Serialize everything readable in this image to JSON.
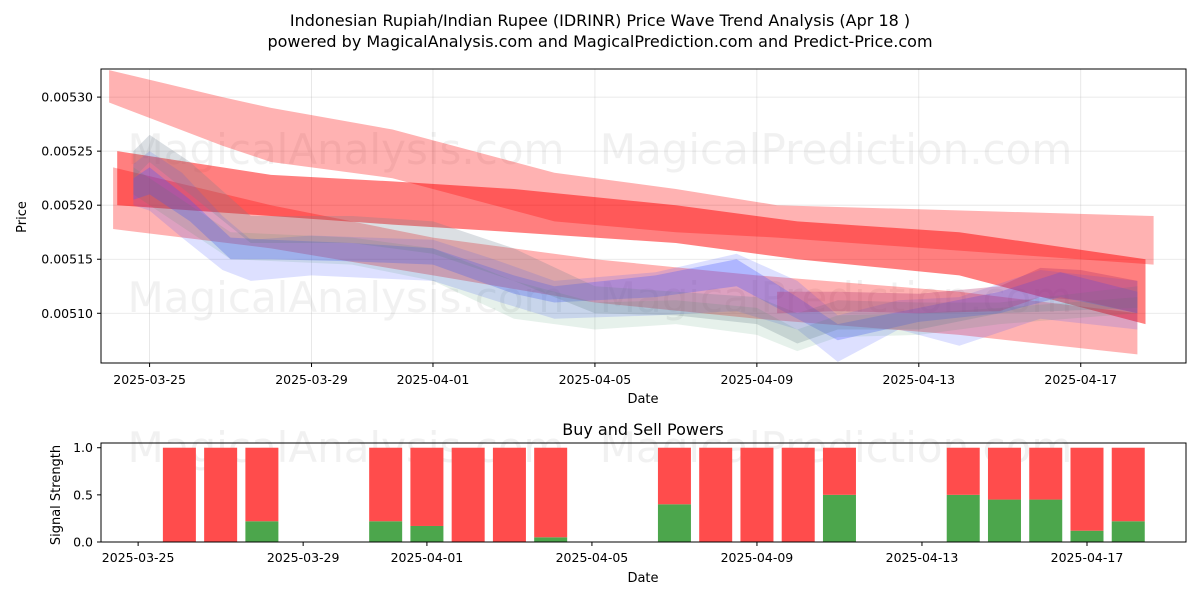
{
  "chart_data": [
    {
      "type": "area",
      "title_line1": "Indonesian Rupiah/Indian Rupee (IDRINR) Price Wave Trend Analysis (Apr 18 )",
      "title_line2": "powered by MagicalAnalysis.com and MagicalPrediction.com and Predict-Price.com",
      "xlabel": "Date",
      "ylabel": "Price",
      "x_ticks": [
        "2025-03-25",
        "2025-03-29",
        "2025-04-01",
        "2025-04-05",
        "2025-04-09",
        "2025-04-13",
        "2025-04-17"
      ],
      "x_tick_days": [
        0,
        4,
        7,
        11,
        15,
        19,
        23
      ],
      "xlim_days": [
        -1.2,
        25.6
      ],
      "y_ticks": [
        "0.00510",
        "0.00515",
        "0.00520",
        "0.00525",
        "0.00530"
      ],
      "y_tick_values": [
        0.0051,
        0.00515,
        0.0052,
        0.00525,
        0.0053
      ],
      "ylim": [
        0.005054,
        0.005326
      ],
      "grid": true,
      "watermarks": [
        "MagicalAnalysis.com",
        "MagicalPrediction.com",
        "MagicalAnalysis.com",
        "MagicalPrediction.com"
      ],
      "series": [
        {
          "name": "red-band-upper",
          "color": "#ff0000",
          "opacity": 0.3,
          "x": [
            -1,
            1.8,
            3,
            6,
            10,
            13,
            15.5,
            24.8
          ],
          "upper": [
            0.005325,
            0.0053,
            0.00529,
            0.00527,
            0.00523,
            0.005215,
            0.0052,
            0.00519
          ],
          "lower": [
            0.005295,
            0.005255,
            0.00524,
            0.005225,
            0.005185,
            0.005175,
            0.00517,
            0.005145
          ]
        },
        {
          "name": "red-band-middle",
          "color": "#ff0000",
          "opacity": 0.5,
          "x": [
            -0.8,
            3,
            6,
            9,
            13,
            16,
            20,
            24.6
          ],
          "upper": [
            0.00525,
            0.005228,
            0.005222,
            0.005215,
            0.0052,
            0.005185,
            0.005175,
            0.00515
          ],
          "lower": [
            0.0052,
            0.00519,
            0.005182,
            0.005175,
            0.005165,
            0.00515,
            0.005135,
            0.00509
          ]
        },
        {
          "name": "red-band-lower",
          "color": "#ff0000",
          "opacity": 0.3,
          "x": [
            -0.9,
            3,
            7,
            11,
            15,
            20,
            24.4
          ],
          "upper": [
            0.005235,
            0.0052,
            0.00517,
            0.00515,
            0.005135,
            0.00512,
            0.0051
          ],
          "lower": [
            0.005178,
            0.00516,
            0.005135,
            0.00511,
            0.005095,
            0.00508,
            0.005062
          ]
        },
        {
          "name": "blue-band-outer",
          "color": "#4455ff",
          "opacity": 0.18,
          "x": [
            -0.4,
            0,
            0.8,
            1.8,
            2.5,
            4,
            7,
            8.5,
            10,
            12.5,
            14.5,
            16,
            17,
            18.5,
            20,
            22,
            24.4
          ],
          "upper": [
            0.005238,
            0.00525,
            0.00523,
            0.00519,
            0.005168,
            0.005172,
            0.005168,
            0.00515,
            0.00513,
            0.005138,
            0.005155,
            0.00513,
            0.005098,
            0.005112,
            0.005115,
            0.00514,
            0.00513
          ],
          "lower": [
            0.0052,
            0.005195,
            0.00517,
            0.00514,
            0.00513,
            0.005135,
            0.00513,
            0.005112,
            0.005095,
            0.005098,
            0.005102,
            0.005085,
            0.005055,
            0.005085,
            0.00507,
            0.005095,
            0.005085
          ]
        },
        {
          "name": "blue-band-inner",
          "color": "#4455ff",
          "opacity": 0.3,
          "x": [
            -0.4,
            0,
            1,
            2,
            3,
            5,
            7,
            9,
            10,
            12.5,
            14.5,
            16,
            17,
            19,
            21,
            22.5,
            24.4
          ],
          "upper": [
            0.005225,
            0.005235,
            0.005205,
            0.00517,
            0.005168,
            0.005165,
            0.00516,
            0.005135,
            0.005125,
            0.005135,
            0.00515,
            0.005115,
            0.00509,
            0.005105,
            0.00512,
            0.005138,
            0.00512
          ],
          "lower": [
            0.005205,
            0.00521,
            0.005185,
            0.00515,
            0.00515,
            0.005148,
            0.005145,
            0.005118,
            0.00511,
            0.005115,
            0.005125,
            0.005095,
            0.005075,
            0.005092,
            0.0051,
            0.005115,
            0.0051
          ]
        },
        {
          "name": "gray-band",
          "color": "#708090",
          "opacity": 0.25,
          "x": [
            -0.4,
            0,
            1,
            2.5,
            5,
            7,
            9,
            11,
            13,
            15,
            16,
            17,
            19,
            21,
            24.4
          ],
          "upper": [
            0.00525,
            0.005265,
            0.00524,
            0.00519,
            0.00519,
            0.005185,
            0.00516,
            0.005125,
            0.00512,
            0.005115,
            0.0051,
            0.005112,
            0.00511,
            0.00511,
            0.005125
          ],
          "lower": [
            0.005225,
            0.00524,
            0.00521,
            0.005165,
            0.005165,
            0.005155,
            0.00513,
            0.0051,
            0.005098,
            0.00509,
            0.005072,
            0.005085,
            0.005085,
            0.0051,
            0.005105
          ]
        },
        {
          "name": "green-band",
          "color": "#2e8b57",
          "opacity": 0.12,
          "x": [
            -0.4,
            2,
            5,
            7,
            9,
            11,
            13,
            15,
            16,
            17,
            19,
            21,
            24.4
          ],
          "upper": [
            0.005235,
            0.005175,
            0.00517,
            0.00516,
            0.00513,
            0.00511,
            0.005112,
            0.005105,
            0.005085,
            0.005098,
            0.0051,
            0.005105,
            0.005115
          ],
          "lower": [
            0.00521,
            0.00515,
            0.005145,
            0.00513,
            0.005095,
            0.005085,
            0.00509,
            0.00508,
            0.005065,
            0.005078,
            0.00508,
            0.00509,
            0.0051
          ]
        },
        {
          "name": "purple-band",
          "color": "#b0306a",
          "opacity": 0.3,
          "x": [
            15.5,
            17,
            19,
            21,
            22,
            23,
            24.4
          ],
          "upper": [
            0.00512,
            0.00512,
            0.005118,
            0.005125,
            0.005142,
            0.00514,
            0.00513
          ],
          "lower": [
            0.0051,
            0.005102,
            0.0051,
            0.005102,
            0.005115,
            0.005112,
            0.0051
          ]
        }
      ]
    },
    {
      "type": "bar",
      "title": "Buy and Sell Powers",
      "xlabel": "Date",
      "ylabel": "Signal Strength",
      "x_ticks": [
        "2025-03-25",
        "2025-03-29",
        "2025-04-01",
        "2025-04-05",
        "2025-04-09",
        "2025-04-13",
        "2025-04-17"
      ],
      "x_tick_days": [
        0,
        4,
        7,
        11,
        15,
        19,
        23
      ],
      "xlim_days": [
        -0.9,
        25.4
      ],
      "y_ticks": [
        "0.0",
        "0.5",
        "1.0"
      ],
      "y_tick_values": [
        0,
        0.5,
        1.0
      ],
      "ylim": [
        0,
        1.05
      ],
      "categories_days": [
        1,
        2,
        3,
        6,
        7,
        8,
        9,
        10,
        13,
        14,
        15,
        16,
        17,
        20,
        21,
        22,
        23,
        24
      ],
      "buy_color": "#4ca64c",
      "sell_color": "#ff4c4c",
      "series": [
        {
          "name": "Buy",
          "values": [
            0,
            0,
            0.22,
            0.22,
            0.17,
            0,
            0,
            0.05,
            0.4,
            0,
            0,
            0,
            0.5,
            0.5,
            0.45,
            0.45,
            0.12,
            0.22
          ]
        },
        {
          "name": "Sell",
          "values": [
            1,
            1,
            0.78,
            0.78,
            0.83,
            1,
            1,
            0.95,
            0.6,
            1,
            1,
            1,
            0.5,
            0.5,
            0.55,
            0.55,
            0.88,
            0.78
          ]
        }
      ],
      "watermarks": [
        "MagicalAnalysis.com",
        "MagicalPrediction.com"
      ]
    }
  ]
}
